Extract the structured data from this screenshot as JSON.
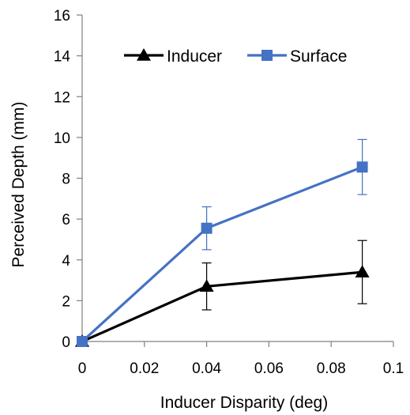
{
  "chart_data": {
    "type": "line",
    "xlabel": "Inducer Disparity (deg)",
    "ylabel": "Perceived Depth (mm)",
    "xlim": [
      0,
      0.1
    ],
    "ylim": [
      0,
      16
    ],
    "x_ticks": [
      "0",
      "0.02",
      "0.04",
      "0.06",
      "0.08",
      "0.1"
    ],
    "y_ticks": [
      "0",
      "2",
      "4",
      "6",
      "8",
      "10",
      "12",
      "14",
      "16"
    ],
    "grid": false,
    "legend_position": "top-center",
    "series": [
      {
        "name": "Inducer",
        "color": "#000000",
        "marker": "triangle",
        "x": [
          0,
          0.04,
          0.09
        ],
        "y": [
          0,
          2.7,
          3.4
        ],
        "error": [
          0,
          1.15,
          1.55
        ]
      },
      {
        "name": "Surface",
        "color": "#4472C4",
        "marker": "square",
        "x": [
          0,
          0.04,
          0.09
        ],
        "y": [
          0,
          5.55,
          8.55
        ],
        "error": [
          0,
          1.05,
          1.35
        ]
      }
    ]
  }
}
